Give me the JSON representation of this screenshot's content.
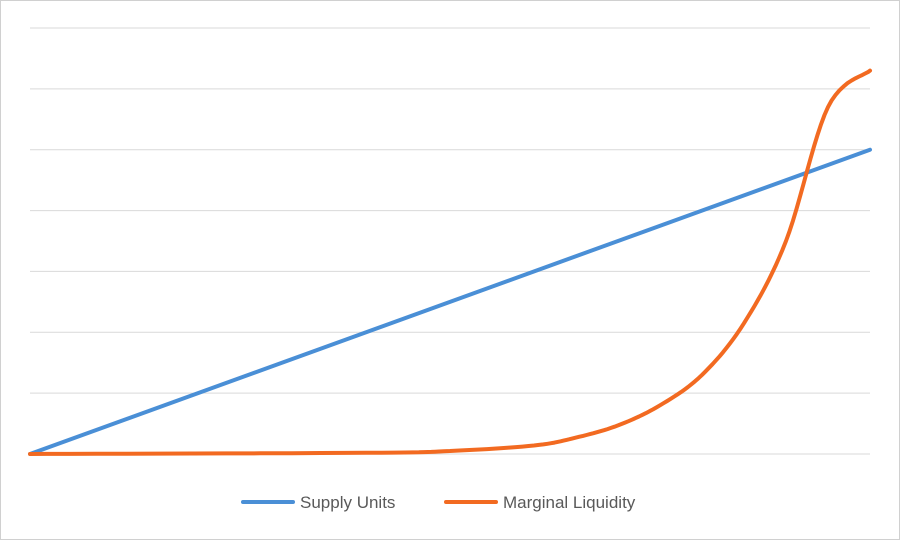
{
  "chart_data": {
    "type": "line",
    "title": "",
    "xlabel": "",
    "ylabel": "",
    "grid": true,
    "legend": "bottom",
    "gridlines": 8,
    "series": [
      {
        "name": "Supply Units",
        "color": "#4a8fd6",
        "shape": "linear",
        "x": [
          0,
          100
        ],
        "y": [
          0,
          5
        ]
      },
      {
        "name": "Marginal Liquidity",
        "color": "#f26a21",
        "shape": "exponential",
        "x": [
          0,
          40,
          50,
          60,
          65,
          70,
          75,
          80,
          85,
          90,
          95,
          100
        ],
        "y": [
          0,
          0.02,
          0.05,
          0.14,
          0.27,
          0.47,
          0.8,
          1.3,
          2.15,
          3.5,
          5.7,
          6.3
        ]
      }
    ]
  }
}
